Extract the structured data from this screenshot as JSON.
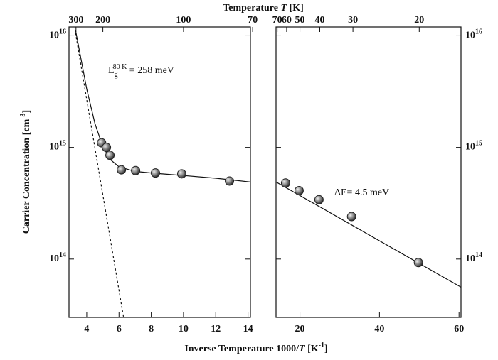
{
  "chart_data": [
    {
      "type": "scatter",
      "xlim": [
        2.9,
        14.15
      ],
      "ylim": [
        30000000000000.0,
        1.2e+16
      ],
      "yscale": "log",
      "ytick_side": "left",
      "xticks": [
        4,
        6,
        8,
        10,
        12,
        14
      ],
      "x2ticks": [
        {
          "value": 3.333,
          "label": "300"
        },
        {
          "value": 5,
          "label": "200"
        },
        {
          "value": 10,
          "label": "100"
        },
        {
          "value": 14.286,
          "label": "70"
        }
      ],
      "yticks": [
        {
          "value": 100000000000000.0,
          "label": "10",
          "exponent": "14"
        },
        {
          "value": 1000000000000000.0,
          "label": "10",
          "exponent": "15"
        },
        {
          "value": 1e+16,
          "label": "10",
          "exponent": "16"
        }
      ],
      "x2label": [
        {
          "text": "Temperature "
        },
        {
          "text": "T",
          "style": "italic"
        },
        {
          "text": " [K]"
        }
      ],
      "xlabel": [
        {
          "text": "Inverse Temperature 1000/"
        },
        {
          "text": "T",
          "style": "italic"
        },
        {
          "text": " [K"
        },
        {
          "text": "-1",
          "style": "sup"
        },
        {
          "text": "]"
        }
      ],
      "ylabel": [
        {
          "text": "Carrier Concentration [cm"
        },
        {
          "text": "-3",
          "style": "sup"
        },
        {
          "text": "]"
        }
      ],
      "annotation": [
        {
          "text": "E"
        },
        {
          "text": "g",
          "style": "sub"
        },
        {
          "text": "80 K",
          "style": "sup"
        },
        {
          "text": " = 258 meV"
        }
      ],
      "series": [
        {
          "style": "line",
          "color": "#111",
          "x": [
            3.3,
            4,
            4.5,
            5,
            5.5,
            6,
            7,
            8,
            10,
            12,
            14.15
          ],
          "values": [
            1.13e+16,
            3340000000000000.0,
            1650000000000000.0,
            1010000000000000.0,
            770000000000000.0,
            670000000000000.0,
            610000000000000.0,
            590000000000000.0,
            560000000000000.0,
            530000000000000.0,
            490000000000000.0
          ]
        },
        {
          "style": "dashed",
          "color": "#111",
          "x": [
            3.3,
            6.3
          ],
          "values": [
            1.06e+16,
            29000000000000.0
          ]
        },
        {
          "style": "marker",
          "color": "#222",
          "x": [
            4.92,
            5.22,
            5.44,
            6.15,
            7.03,
            8.26,
            9.89,
            12.85
          ],
          "values": [
            1100000000000000.0,
            1000000000000000.0,
            850000000000000.0,
            630000000000000.0,
            620000000000000.0,
            590000000000000.0,
            580000000000000.0,
            500000000000000.0
          ]
        }
      ]
    },
    {
      "type": "scatter",
      "xlim": [
        14,
        60.5
      ],
      "ylim": [
        30000000000000.0,
        1.2e+16
      ],
      "yscale": "log",
      "ytick_side": "right",
      "xticks": [
        20,
        40,
        60
      ],
      "x2ticks": [
        {
          "value": 14.286,
          "label": "70"
        },
        {
          "value": 16.667,
          "label": "60"
        },
        {
          "value": 20,
          "label": "50"
        },
        {
          "value": 25,
          "label": "40"
        },
        {
          "value": 33.333,
          "label": "30"
        },
        {
          "value": 50,
          "label": "20"
        }
      ],
      "yticks": [
        {
          "value": 100000000000000.0,
          "label": "10",
          "exponent": "14"
        },
        {
          "value": 1000000000000000.0,
          "label": "10",
          "exponent": "15"
        },
        {
          "value": 1e+16,
          "label": "10",
          "exponent": "16"
        }
      ],
      "annotation": [
        {
          "text": "ΔE= 4.5 meV"
        }
      ],
      "series": [
        {
          "style": "line",
          "color": "#111",
          "x": [
            14,
            60.5
          ],
          "values": [
            490000000000000.0,
            56000000000000.0
          ]
        },
        {
          "style": "marker",
          "color": "#222",
          "x": [
            16.4,
            19.8,
            24.8,
            33.0,
            49.8
          ],
          "values": [
            480000000000000.0,
            410000000000000.0,
            340000000000000.0,
            240000000000000.0,
            93000000000000.0
          ]
        }
      ]
    }
  ]
}
